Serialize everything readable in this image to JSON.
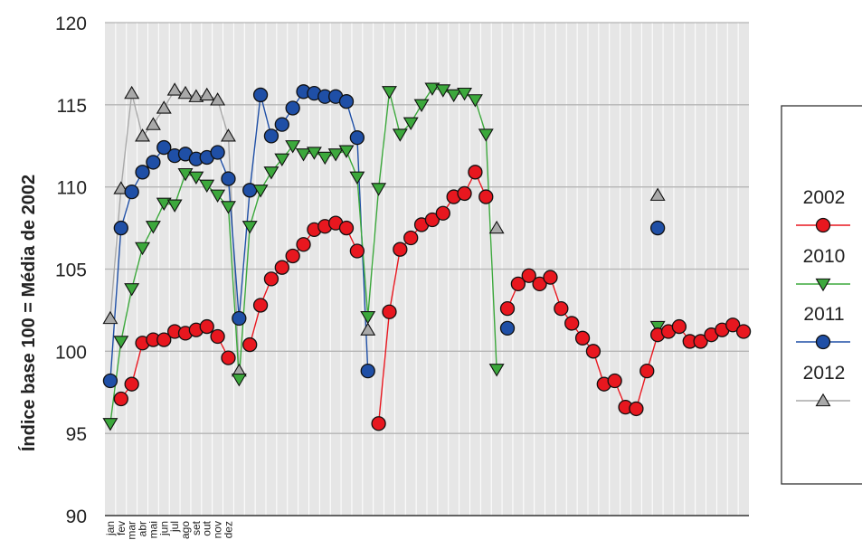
{
  "chart_data": {
    "type": "line",
    "ylabel": "Índice base 100 = Média de 2002",
    "xlabel": "",
    "ylim": [
      90,
      120
    ],
    "yticks": [
      90,
      95,
      100,
      105,
      110,
      115,
      120
    ],
    "x_count": 60,
    "month_labels": [
      "jan",
      "fev",
      "mar",
      "abr",
      "mai",
      "jun",
      "jul",
      "ago",
      "set",
      "out",
      "nov",
      "dez"
    ],
    "grid": true,
    "legend_position": "right",
    "series": [
      {
        "name": "2002",
        "color": "#e8171f",
        "marker": "circle",
        "values": [
          [
            1,
            97.1
          ],
          [
            2,
            98.0
          ],
          [
            3,
            100.5
          ],
          [
            4,
            100.7
          ],
          [
            5,
            100.7
          ],
          [
            6,
            101.2
          ],
          [
            7,
            101.1
          ],
          [
            8,
            101.3
          ],
          [
            9,
            101.5
          ],
          [
            10,
            100.9
          ],
          [
            11,
            99.6
          ],
          [
            13,
            100.4
          ],
          [
            14,
            102.8
          ],
          [
            15,
            104.4
          ],
          [
            16,
            105.1
          ],
          [
            17,
            105.8
          ],
          [
            18,
            106.5
          ],
          [
            19,
            107.4
          ],
          [
            20,
            107.6
          ],
          [
            21,
            107.8
          ],
          [
            22,
            107.5
          ],
          [
            23,
            106.1
          ],
          [
            25,
            95.6
          ],
          [
            26,
            102.4
          ],
          [
            27,
            106.2
          ],
          [
            28,
            106.9
          ],
          [
            29,
            107.7
          ],
          [
            30,
            108.0
          ],
          [
            31,
            108.4
          ],
          [
            32,
            109.4
          ],
          [
            33,
            109.6
          ],
          [
            34,
            110.9
          ],
          [
            35,
            109.4
          ],
          [
            37,
            102.6
          ],
          [
            38,
            104.1
          ],
          [
            39,
            104.6
          ],
          [
            40,
            104.1
          ],
          [
            41,
            104.5
          ],
          [
            42,
            102.6
          ],
          [
            43,
            101.7
          ],
          [
            44,
            100.8
          ],
          [
            45,
            100.0
          ],
          [
            46,
            98.0
          ],
          [
            47,
            98.2
          ],
          [
            48,
            96.6
          ],
          [
            49,
            96.5
          ],
          [
            50,
            98.8
          ],
          [
            51,
            101.0
          ],
          [
            52,
            101.2
          ],
          [
            53,
            101.5
          ],
          [
            54,
            100.6
          ],
          [
            55,
            100.6
          ],
          [
            56,
            101.0
          ],
          [
            57,
            101.3
          ],
          [
            58,
            101.6
          ],
          [
            59,
            101.2
          ]
        ]
      },
      {
        "name": "2010",
        "color": "#3ca83c",
        "marker": "triangle-down",
        "values": [
          [
            0,
            95.6
          ],
          [
            1,
            100.6
          ],
          [
            2,
            103.8
          ],
          [
            3,
            106.3
          ],
          [
            4,
            107.6
          ],
          [
            5,
            109.0
          ],
          [
            6,
            108.9
          ],
          [
            7,
            110.8
          ],
          [
            8,
            110.6
          ],
          [
            9,
            110.1
          ],
          [
            10,
            109.5
          ],
          [
            11,
            108.8
          ],
          [
            12,
            98.3
          ],
          [
            13,
            107.6
          ],
          [
            14,
            109.8
          ],
          [
            15,
            110.9
          ],
          [
            16,
            111.7
          ],
          [
            17,
            112.5
          ],
          [
            18,
            112.0
          ],
          [
            19,
            112.1
          ],
          [
            20,
            111.8
          ],
          [
            21,
            112.0
          ],
          [
            22,
            112.2
          ],
          [
            23,
            110.6
          ],
          [
            24,
            102.1
          ],
          [
            25,
            109.9
          ],
          [
            26,
            115.8
          ],
          [
            27,
            113.2
          ],
          [
            28,
            113.9
          ],
          [
            29,
            115.0
          ],
          [
            30,
            116.0
          ],
          [
            31,
            115.9
          ],
          [
            32,
            115.6
          ],
          [
            33,
            115.7
          ],
          [
            34,
            115.3
          ],
          [
            35,
            113.2
          ],
          [
            36,
            98.9
          ],
          [
            51,
            101.5
          ]
        ]
      },
      {
        "name": "2011",
        "color": "#1f4fa6",
        "marker": "circle",
        "values": [
          [
            0,
            98.2
          ],
          [
            1,
            107.5
          ],
          [
            2,
            109.7
          ],
          [
            3,
            110.9
          ],
          [
            4,
            111.5
          ],
          [
            5,
            112.4
          ],
          [
            6,
            111.9
          ],
          [
            7,
            112.0
          ],
          [
            8,
            111.7
          ],
          [
            9,
            111.8
          ],
          [
            10,
            112.1
          ],
          [
            11,
            110.5
          ],
          [
            12,
            102.0
          ],
          [
            13,
            109.8
          ],
          [
            14,
            115.6
          ],
          [
            15,
            113.1
          ],
          [
            16,
            113.8
          ],
          [
            17,
            114.8
          ],
          [
            18,
            115.8
          ],
          [
            19,
            115.7
          ],
          [
            20,
            115.5
          ],
          [
            21,
            115.5
          ],
          [
            22,
            115.2
          ],
          [
            23,
            113.0
          ],
          [
            24,
            98.8
          ],
          [
            37,
            101.4
          ],
          [
            51,
            107.5
          ]
        ]
      },
      {
        "name": "2012",
        "color": "#a9a9a9",
        "marker": "triangle-up",
        "values": [
          [
            0,
            102.0
          ],
          [
            1,
            109.9
          ],
          [
            2,
            115.7
          ],
          [
            3,
            113.1
          ],
          [
            4,
            113.8
          ],
          [
            5,
            114.8
          ],
          [
            6,
            115.9
          ],
          [
            7,
            115.7
          ],
          [
            8,
            115.5
          ],
          [
            9,
            115.6
          ],
          [
            10,
            115.3
          ],
          [
            11,
            113.1
          ],
          [
            12,
            98.8
          ],
          [
            24,
            101.3
          ],
          [
            36,
            107.5
          ],
          [
            51,
            109.5
          ]
        ]
      }
    ]
  }
}
